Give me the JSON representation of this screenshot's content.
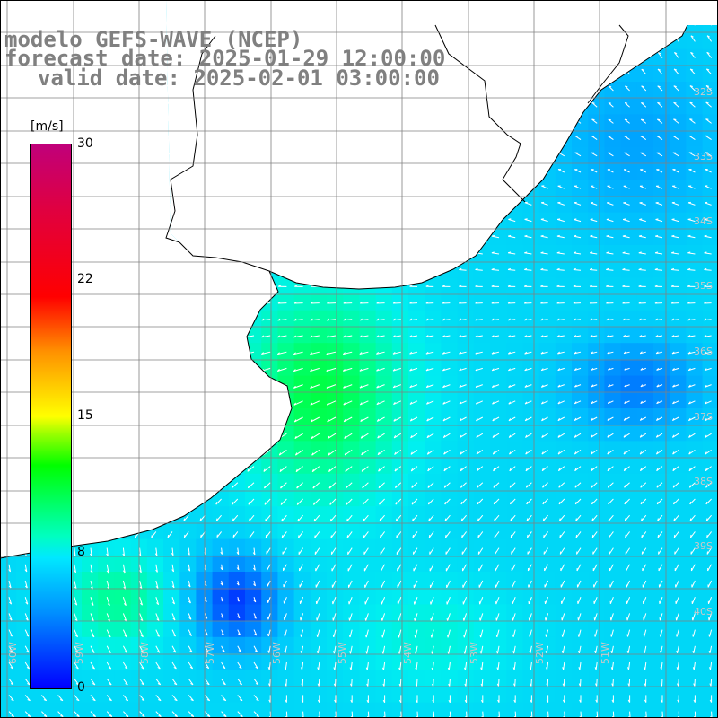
{
  "title": {
    "model": "modelo GEFS-WAVE (NCEP)",
    "forecast": "forecast date: 2025-01-29 12:00:00",
    "valid": "valid date: 2025-02-01 03:00:00"
  },
  "colorbar": {
    "unit": "[m/s]",
    "ticks": [
      "30",
      "22",
      "15",
      "8",
      "0"
    ],
    "tick_values": [
      30,
      22,
      15,
      8,
      0
    ],
    "range": [
      0,
      30
    ],
    "colors": [
      "#0000ff",
      "#0090ff",
      "#00e8ff",
      "#00ff00",
      "#ffff00",
      "#ff0000",
      "#c0007a"
    ]
  },
  "lat_labels": [
    "32S",
    "33S",
    "34S",
    "35S",
    "36S",
    "37S",
    "38S",
    "39S",
    "40S"
  ],
  "lon_labels": [
    "60W",
    "59W",
    "58W",
    "57W",
    "56W",
    "55W",
    "54W",
    "53W",
    "52W",
    "51W"
  ],
  "colors": {
    "land": "#ffffff",
    "grid": "#808080",
    "coast": "#000000",
    "arrow": "#ffffff",
    "title_text": "#808080"
  },
  "field": {
    "variable": "wind speed and direction",
    "unit": "m/s"
  }
}
